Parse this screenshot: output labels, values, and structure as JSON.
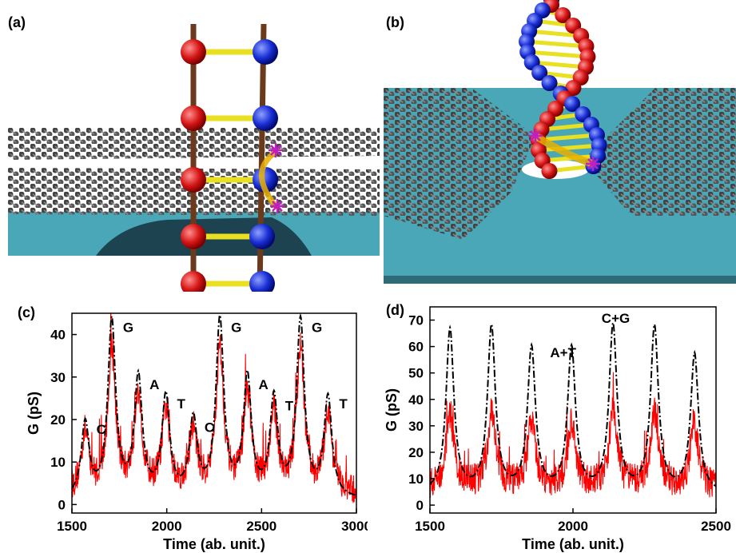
{
  "panels": {
    "a": "(a)",
    "b": "(b)",
    "c": "(c)",
    "d": "(d)"
  },
  "colors": {
    "substrate": "#4aa7b8",
    "graphene_atom": "#3a3a3a",
    "base_red": "#d51515",
    "base_blue": "#1a2fd6",
    "rung": "#e8e020",
    "backbone": "#6b3a1a",
    "current": "#e8b000",
    "marker": "#c020c0",
    "signal_red": "#ff0000",
    "fit_black": "#000000"
  },
  "chart_data": [
    {
      "type": "line",
      "panel": "c",
      "xlabel": "Time (ab. unit.)",
      "ylabel": "G (pS)",
      "xlim": [
        1500,
        3000
      ],
      "ylim": [
        -2,
        45
      ],
      "xticks": [
        1500,
        2000,
        2500,
        3000
      ],
      "yticks": [
        0,
        10,
        20,
        30,
        40
      ],
      "series": [
        {
          "style": "dash-dot",
          "color": "#000000",
          "peaks": [
            {
              "x": 1570,
              "y": 18.5,
              "label": "C"
            },
            {
              "x": 1710,
              "y": 42.5,
              "label": "G"
            },
            {
              "x": 1850,
              "y": 29,
              "label": "A"
            },
            {
              "x": 1995,
              "y": 24.5,
              "label": "T"
            },
            {
              "x": 2140,
              "y": 19,
              "label": "C"
            },
            {
              "x": 2280,
              "y": 42.5,
              "label": "G"
            },
            {
              "x": 2425,
              "y": 29,
              "label": "A"
            },
            {
              "x": 2565,
              "y": 24,
              "label": "T"
            },
            {
              "x": 2705,
              "y": 42.5,
              "label": "G"
            },
            {
              "x": 2850,
              "y": 24.5,
              "label": "T"
            }
          ],
          "baseline": 1
        },
        {
          "style": "noisy",
          "color": "#ff0000",
          "noise": 7,
          "peak_scale": 0.8
        }
      ]
    },
    {
      "type": "line",
      "panel": "d",
      "xlabel": "Time (ab. unit.)",
      "ylabel": "G (pS)",
      "xlim": [
        1500,
        2500
      ],
      "ylim": [
        -3,
        75
      ],
      "xticks": [
        1500,
        2000,
        2500
      ],
      "yticks": [
        0,
        10,
        20,
        30,
        40,
        50,
        60,
        70
      ],
      "annotations": [
        {
          "x": 1920,
          "y": 56,
          "text": "A+T"
        },
        {
          "x": 2100,
          "y": 69,
          "text": "C+G"
        }
      ],
      "series": [
        {
          "style": "dash-dot",
          "color": "#000000",
          "peaks": [
            {
              "x": 1570,
              "y": 66
            },
            {
              "x": 1715,
              "y": 66.5
            },
            {
              "x": 1855,
              "y": 58.5
            },
            {
              "x": 1995,
              "y": 58.5
            },
            {
              "x": 2140,
              "y": 67
            },
            {
              "x": 2285,
              "y": 66.5
            },
            {
              "x": 2425,
              "y": 56.5
            }
          ],
          "baseline": 4
        },
        {
          "style": "noisy",
          "color": "#ff0000",
          "noise": 12,
          "peak_scale": 0.45
        }
      ]
    }
  ]
}
